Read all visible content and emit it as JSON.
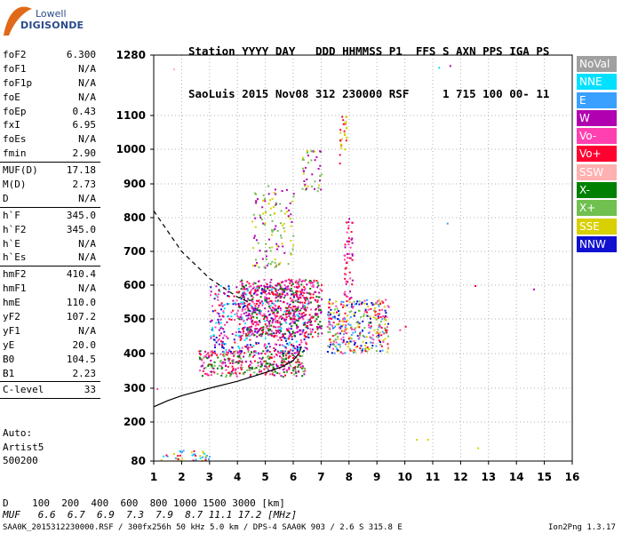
{
  "logo": {
    "line1": "Lowell",
    "line2": "DIGISONDE"
  },
  "header": {
    "line1": "Station YYYY DAY   DDD HHMMSS P1  FFS S AXN PPS IGA PS",
    "line2": "SaoLuis 2015 Nov08 312 230000 RSF     1 715 100 00- 11"
  },
  "params": [
    {
      "name": "foF2",
      "value": "6.300",
      "sep": false
    },
    {
      "name": "foF1",
      "value": "N/A",
      "sep": false
    },
    {
      "name": "foF1p",
      "value": "N/A",
      "sep": false
    },
    {
      "name": "foE",
      "value": "N/A",
      "sep": false
    },
    {
      "name": "foEp",
      "value": "0.43",
      "sep": false
    },
    {
      "name": "fxI",
      "value": "6.95",
      "sep": false
    },
    {
      "name": "foEs",
      "value": "N/A",
      "sep": false
    },
    {
      "name": "fmin",
      "value": "2.90",
      "sep": true
    },
    {
      "name": "MUF(D)",
      "value": "17.18",
      "sep": false
    },
    {
      "name": "M(D)",
      "value": "2.73",
      "sep": false
    },
    {
      "name": "D",
      "value": "N/A",
      "sep": true
    },
    {
      "name": "h`F",
      "value": "345.0",
      "sep": false
    },
    {
      "name": "h`F2",
      "value": "345.0",
      "sep": false
    },
    {
      "name": "h`E",
      "value": "N/A",
      "sep": false
    },
    {
      "name": "h`Es",
      "value": "N/A",
      "sep": true
    },
    {
      "name": "hmF2",
      "value": "410.4",
      "sep": false
    },
    {
      "name": "hmF1",
      "value": "N/A",
      "sep": false
    },
    {
      "name": "hmE",
      "value": "110.0",
      "sep": false
    },
    {
      "name": "yF2",
      "value": "107.2",
      "sep": false
    },
    {
      "name": "yF1",
      "value": "N/A",
      "sep": false
    },
    {
      "name": "yE",
      "value": "20.0",
      "sep": false
    },
    {
      "name": "B0",
      "value": "104.5",
      "sep": false
    },
    {
      "name": "B1",
      "value": "2.23",
      "sep": true
    },
    {
      "name": "C-level",
      "value": "33",
      "sep": true
    }
  ],
  "auto": {
    "line1": "Auto:",
    "line2": "Artist5",
    "line3": "500200"
  },
  "bottom": {
    "d_line": "D    100  200  400  600  800 1000 1500 3000 [km]",
    "muf_line": "MUF   6.6  6.7  6.9  7.3  7.9  8.7 11.1 17.2 [MHz]",
    "footer": "SAA0K_2015312230000.RSF / 300fx256h 50 kHz 5.0 km / DPS-4 SAA0K 903 / 2.6 S 315.8 E",
    "version": "Ion2Png 1.3.17"
  },
  "legend": [
    {
      "label": "NoVal",
      "color": "#a0a0a0"
    },
    {
      "label": "NNE",
      "color": "#00e0ff"
    },
    {
      "label": "E",
      "color": "#3aa0ff"
    },
    {
      "label": "W",
      "color": "#b000b0"
    },
    {
      "label": "Vo-",
      "color": "#ff40b0"
    },
    {
      "label": "Vo+",
      "color": "#ff0030"
    },
    {
      "label": "SSW",
      "color": "#ffb0b0"
    },
    {
      "label": "X-",
      "color": "#008000"
    },
    {
      "label": "X+",
      "color": "#70c050"
    },
    {
      "label": "SSE",
      "color": "#d8d000"
    },
    {
      "label": "NNW",
      "color": "#1010d0"
    }
  ],
  "chart_data": {
    "type": "scatter",
    "x_range": [
      1,
      16
    ],
    "y_range": [
      80,
      1280
    ],
    "x_ticks": [
      1,
      2,
      3,
      4,
      5,
      6,
      7,
      8,
      9,
      10,
      11,
      12,
      13,
      14,
      15,
      16
    ],
    "y_ticks": [
      80,
      200,
      300,
      400,
      500,
      600,
      700,
      800,
      900,
      1000,
      1100,
      1280
    ],
    "grid": "dotted",
    "legend_position": "right",
    "traces": [
      {
        "style": "dashed",
        "points": [
          [
            1,
            820
          ],
          [
            2,
            700
          ],
          [
            3,
            620
          ],
          [
            4,
            565
          ],
          [
            4.4,
            550
          ]
        ]
      },
      {
        "style": "solid",
        "points": [
          [
            1,
            245
          ],
          [
            1.5,
            263
          ],
          [
            2,
            278
          ],
          [
            3,
            300
          ],
          [
            4,
            320
          ],
          [
            5,
            345
          ],
          [
            5.6,
            362
          ],
          [
            6.0,
            380
          ],
          [
            6.2,
            400
          ],
          [
            6.3,
            420
          ]
        ]
      }
    ],
    "clusters": [
      {
        "x": [
          2.6,
          6.4
        ],
        "y": [
          335,
          410
        ],
        "density": 0.9,
        "colors": [
          "Vo+",
          "Vo-",
          "X-",
          "X+",
          "W"
        ]
      },
      {
        "x": [
          3.0,
          6.6
        ],
        "y": [
          400,
          600
        ],
        "density": 0.55,
        "colors": [
          "NNW",
          "W",
          "Vo-",
          "Vo+",
          "NNE"
        ]
      },
      {
        "x": [
          4.0,
          7.0
        ],
        "y": [
          450,
          620
        ],
        "density": 0.8,
        "colors": [
          "Vo+",
          "Vo-",
          "X-",
          "W"
        ]
      },
      {
        "x": [
          7.2,
          9.4
        ],
        "y": [
          400,
          560
        ],
        "density": 0.75,
        "colors": [
          "Vo+",
          "X+",
          "E",
          "NNW",
          "SSE",
          "Vo-"
        ]
      },
      {
        "x": [
          7.8,
          8.1
        ],
        "y": [
          560,
          800
        ],
        "density": 0.6,
        "colors": [
          "Vo+",
          "Vo-",
          "W"
        ]
      },
      {
        "x": [
          4.5,
          6.0
        ],
        "y": [
          650,
          900
        ],
        "density": 0.25,
        "colors": [
          "W",
          "SSE",
          "X+"
        ]
      },
      {
        "x": [
          6.3,
          7.0
        ],
        "y": [
          880,
          1000
        ],
        "density": 0.4,
        "colors": [
          "X+",
          "SSE",
          "W"
        ]
      },
      {
        "x": [
          7.6,
          7.9
        ],
        "y": [
          960,
          1100
        ],
        "density": 0.5,
        "colors": [
          "SSE",
          "Vo+"
        ]
      },
      {
        "x": [
          1.2,
          3.0
        ],
        "y": [
          82,
          115
        ],
        "density": 0.5,
        "colors": [
          "SSE",
          "NNE",
          "Vo+",
          "E"
        ]
      }
    ],
    "isolated_points": [
      {
        "x": 1.7,
        "y": 1240,
        "c": "SSW"
      },
      {
        "x": 11.2,
        "y": 1245,
        "c": "NNE"
      },
      {
        "x": 11.6,
        "y": 1250,
        "c": "W"
      },
      {
        "x": 11.5,
        "y": 785,
        "c": "E"
      },
      {
        "x": 12.5,
        "y": 600,
        "c": "Vo+"
      },
      {
        "x": 14.6,
        "y": 590,
        "c": "W"
      },
      {
        "x": 10.4,
        "y": 148,
        "c": "SSE"
      },
      {
        "x": 10.8,
        "y": 148,
        "c": "SSE"
      },
      {
        "x": 12.6,
        "y": 122,
        "c": "SSE"
      },
      {
        "x": 10.0,
        "y": 480,
        "c": "Vo+"
      },
      {
        "x": 9.8,
        "y": 470,
        "c": "Vo-"
      },
      {
        "x": 1.1,
        "y": 300,
        "c": "Vo-"
      }
    ]
  }
}
